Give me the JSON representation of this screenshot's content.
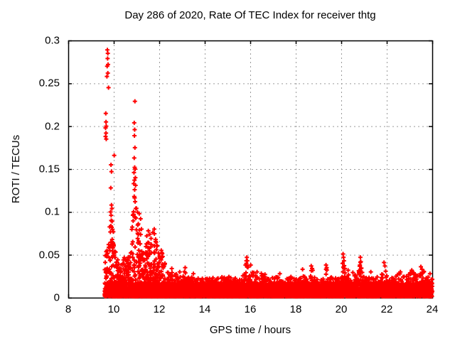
{
  "chart_data": {
    "type": "scatter",
    "title": "Day 286 of 2020, Rate Of TEC Index for receiver thtg",
    "xlabel": "GPS time / hours",
    "ylabel": "ROTI / TECUs",
    "xlim": [
      8,
      24
    ],
    "ylim": [
      0,
      0.3
    ],
    "xticks": {
      "values": [
        8,
        10,
        12,
        14,
        16,
        18,
        20,
        22,
        24
      ],
      "labels": [
        "8",
        "10",
        "12",
        "14",
        "16",
        "18",
        "20",
        "22",
        "24"
      ]
    },
    "yticks": {
      "values": [
        0,
        0.05,
        0.1,
        0.15,
        0.2,
        0.25,
        0.3
      ],
      "labels": [
        "0",
        "0.05",
        "0.1",
        "0.15",
        "0.2",
        "0.25",
        "0.3"
      ]
    },
    "grid": true,
    "legend": "none",
    "marker": "plus",
    "series_color": "#ff0000",
    "grid_color": "#9a9a9a",
    "axis_color": "#000000",
    "background": "#ffffff",
    "dense_band": {
      "x_start": 9.6,
      "x_end": 24.0,
      "x_step": 0.0052,
      "y_floor": 0.0015,
      "base_layer_amp": 0.016,
      "base_amp_before_12": 0.032,
      "base_amp_after_12": 0.023,
      "tail_exponent": 2.6,
      "extra_fill": {
        "x_start": 9.62,
        "x_end": 12.2,
        "x_step": 0.009,
        "exponent": 1.8
      },
      "seed": 20
    },
    "bumps": [
      {
        "x": 9.75,
        "a": 0.03,
        "w": 0.12
      },
      {
        "x": 9.9,
        "a": 0.05,
        "w": 0.07
      },
      {
        "x": 10.05,
        "a": 0.025,
        "w": 0.1
      },
      {
        "x": 10.55,
        "a": 0.02,
        "w": 0.12
      },
      {
        "x": 10.9,
        "a": 0.07,
        "w": 0.1
      },
      {
        "x": 11.1,
        "a": 0.045,
        "w": 0.12
      },
      {
        "x": 11.5,
        "a": 0.03,
        "w": 0.2
      },
      {
        "x": 11.78,
        "a": 0.038,
        "w": 0.1
      },
      {
        "x": 12.1,
        "a": 0.022,
        "w": 0.15
      },
      {
        "x": 12.55,
        "a": 0.008,
        "w": 0.15
      },
      {
        "x": 13.15,
        "a": 0.008,
        "w": 0.07
      },
      {
        "x": 15.85,
        "a": 0.02,
        "w": 0.07
      },
      {
        "x": 16.05,
        "a": 0.01,
        "w": 0.1
      },
      {
        "x": 16.55,
        "a": 0.007,
        "w": 0.08
      },
      {
        "x": 18.3,
        "a": 0.009,
        "w": 0.06
      },
      {
        "x": 18.7,
        "a": 0.011,
        "w": 0.06
      },
      {
        "x": 19.35,
        "a": 0.011,
        "w": 0.05
      },
      {
        "x": 20.1,
        "a": 0.022,
        "w": 0.07
      },
      {
        "x": 20.5,
        "a": 0.01,
        "w": 0.12
      },
      {
        "x": 20.85,
        "a": 0.018,
        "w": 0.07
      },
      {
        "x": 21.9,
        "a": 0.014,
        "w": 0.08
      },
      {
        "x": 22.6,
        "a": 0.006,
        "w": 0.1
      },
      {
        "x": 23.1,
        "a": 0.008,
        "w": 0.1
      },
      {
        "x": 23.55,
        "a": 0.009,
        "w": 0.1
      }
    ],
    "outlier_points": [
      [
        9.72,
        0.289
      ],
      [
        9.74,
        0.285
      ],
      [
        9.73,
        0.279
      ],
      [
        9.75,
        0.272
      ],
      [
        9.71,
        0.27
      ],
      [
        9.74,
        0.262
      ],
      [
        9.7,
        0.258
      ],
      [
        9.77,
        0.245
      ],
      [
        9.65,
        0.215
      ],
      [
        9.66,
        0.205
      ],
      [
        9.67,
        0.2
      ],
      [
        9.64,
        0.198
      ],
      [
        9.66,
        0.192
      ],
      [
        9.64,
        0.188
      ],
      [
        9.67,
        0.185
      ],
      [
        10.02,
        0.166
      ],
      [
        9.88,
        0.155
      ],
      [
        9.9,
        0.147
      ],
      [
        9.87,
        0.128
      ],
      [
        9.9,
        0.108
      ],
      [
        9.92,
        0.104
      ],
      [
        9.86,
        0.1
      ],
      [
        9.89,
        0.09
      ],
      [
        9.91,
        0.082
      ],
      [
        9.93,
        0.068
      ],
      [
        9.85,
        0.06
      ],
      [
        10.93,
        0.229
      ],
      [
        10.9,
        0.204
      ],
      [
        10.92,
        0.196
      ],
      [
        10.91,
        0.189
      ],
      [
        10.93,
        0.175
      ],
      [
        10.9,
        0.163
      ],
      [
        10.92,
        0.152
      ],
      [
        10.94,
        0.15
      ],
      [
        10.89,
        0.146
      ],
      [
        10.95,
        0.14
      ],
      [
        10.91,
        0.137
      ],
      [
        10.88,
        0.133
      ],
      [
        10.96,
        0.131
      ],
      [
        10.92,
        0.126
      ],
      [
        10.9,
        0.118
      ],
      [
        10.94,
        0.112
      ],
      [
        10.97,
        0.104
      ],
      [
        10.87,
        0.1
      ],
      [
        11.12,
        0.098
      ],
      [
        11.18,
        0.092
      ],
      [
        11.08,
        0.086
      ],
      [
        11.22,
        0.08
      ],
      [
        11.05,
        0.075
      ],
      [
        11.45,
        0.072
      ],
      [
        11.52,
        0.078
      ],
      [
        11.58,
        0.074
      ],
      [
        11.65,
        0.062
      ],
      [
        11.72,
        0.076
      ],
      [
        11.78,
        0.08
      ],
      [
        11.84,
        0.068
      ],
      [
        11.9,
        0.06
      ],
      [
        11.96,
        0.052
      ],
      [
        12.02,
        0.047
      ],
      [
        12.25,
        0.04
      ],
      [
        12.55,
        0.034
      ],
      [
        12.9,
        0.03
      ],
      [
        13.14,
        0.035
      ],
      [
        13.5,
        0.028
      ],
      [
        15.83,
        0.04
      ],
      [
        15.85,
        0.047
      ],
      [
        15.87,
        0.043
      ],
      [
        15.89,
        0.036
      ],
      [
        16.02,
        0.038
      ],
      [
        16.3,
        0.03
      ],
      [
        17.3,
        0.028
      ],
      [
        18.3,
        0.033
      ],
      [
        18.68,
        0.037
      ],
      [
        18.72,
        0.034
      ],
      [
        19.33,
        0.038
      ],
      [
        19.36,
        0.035
      ],
      [
        20.06,
        0.04
      ],
      [
        20.08,
        0.051
      ],
      [
        20.1,
        0.047
      ],
      [
        20.12,
        0.043
      ],
      [
        20.3,
        0.032
      ],
      [
        20.82,
        0.038
      ],
      [
        20.84,
        0.047
      ],
      [
        20.86,
        0.042
      ],
      [
        21.3,
        0.03
      ],
      [
        21.88,
        0.041
      ],
      [
        21.92,
        0.037
      ],
      [
        22.6,
        0.03
      ],
      [
        23.1,
        0.032
      ],
      [
        23.5,
        0.036
      ],
      [
        23.55,
        0.033
      ],
      [
        23.9,
        0.028
      ]
    ]
  }
}
